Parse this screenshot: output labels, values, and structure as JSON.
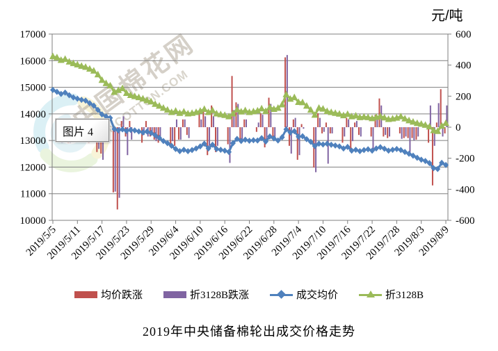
{
  "chart": {
    "unit_label": "元/吨",
    "title": "2019年中央储备棉轮出成交价格走势",
    "tooltip": "图片 4",
    "watermark": {
      "text": "中国棉花网",
      "subtext": "CNCOTTON.COM"
    },
    "legend": [
      {
        "label": "均价跌涨",
        "type": "bar",
        "color": "#c0504d"
      },
      {
        "label": "折3128B跌涨",
        "type": "bar",
        "color": "#8064a2"
      },
      {
        "label": "成交均价",
        "type": "line-diamond",
        "color": "#4f81bd"
      },
      {
        "label": "折3128B",
        "type": "line-triangle",
        "color": "#9bbb59"
      }
    ]
  },
  "chart_data": {
    "type": "combo bar + line (dual axis)",
    "title": "2019年中央储备棉轮出成交价格走势",
    "grid": "horizontal",
    "legend_position": "bottom",
    "y_left": {
      "min": 10000,
      "max": 17000,
      "step": 1000,
      "ticks": [
        17000,
        16000,
        15000,
        14000,
        13000,
        12000,
        11000,
        10000
      ]
    },
    "y_right": {
      "min": -600,
      "max": 600,
      "step": 200,
      "title": "元/吨",
      "ticks": [
        600,
        400,
        200,
        0,
        -200,
        -400,
        -600
      ]
    },
    "x_tick_labels": [
      "2019/5/5",
      "2019/5/11",
      "2019/5/17",
      "2019/5/23",
      "2019/5/29",
      "2019/6/4",
      "2019/6/10",
      "2019/6/16",
      "2019/6/22",
      "2019/6/28",
      "2019/7/4",
      "2019/7/10",
      "2019/7/16",
      "2019/7/22",
      "2019/7/28",
      "2019/8/3",
      "2019/8/9"
    ],
    "x": [
      "2019/5/5",
      "2019/5/6",
      "2019/5/7",
      "2019/5/8",
      "2019/5/9",
      "2019/5/10",
      "2019/5/11",
      "2019/5/12",
      "2019/5/13",
      "2019/5/14",
      "2019/5/15",
      "2019/5/16",
      "2019/5/17",
      "2019/5/18",
      "2019/5/19",
      "2019/5/20",
      "2019/5/21",
      "2019/5/22",
      "2019/5/23",
      "2019/5/24",
      "2019/5/25",
      "2019/5/26",
      "2019/5/27",
      "2019/5/28",
      "2019/5/29",
      "2019/5/30",
      "2019/5/31",
      "2019/6/1",
      "2019/6/2",
      "2019/6/3",
      "2019/6/4",
      "2019/6/5",
      "2019/6/6",
      "2019/6/7",
      "2019/6/8",
      "2019/6/9",
      "2019/6/10",
      "2019/6/11",
      "2019/6/12",
      "2019/6/13",
      "2019/6/14",
      "2019/6/15",
      "2019/6/16",
      "2019/6/17",
      "2019/6/18",
      "2019/6/19",
      "2019/6/20",
      "2019/6/21",
      "2019/6/22",
      "2019/6/23",
      "2019/6/24",
      "2019/6/25",
      "2019/6/26",
      "2019/6/27",
      "2019/6/28",
      "2019/6/29",
      "2019/6/30",
      "2019/7/1",
      "2019/7/2",
      "2019/7/3",
      "2019/7/4",
      "2019/7/5",
      "2019/7/6",
      "2019/7/7",
      "2019/7/8",
      "2019/7/9",
      "2019/7/10",
      "2019/7/11",
      "2019/7/12",
      "2019/7/13",
      "2019/7/14",
      "2019/7/15",
      "2019/7/16",
      "2019/7/17",
      "2019/7/18",
      "2019/7/19",
      "2019/7/20",
      "2019/7/21",
      "2019/7/22",
      "2019/7/23",
      "2019/7/24",
      "2019/7/25",
      "2019/7/26",
      "2019/7/27",
      "2019/7/28",
      "2019/7/29",
      "2019/7/30",
      "2019/7/31",
      "2019/8/1",
      "2019/8/2",
      "2019/8/3",
      "2019/8/4",
      "2019/8/5",
      "2019/8/6",
      "2019/8/7",
      "2019/8/8",
      "2019/8/9"
    ],
    "series": [
      {
        "name": "均价跌涨",
        "axis": "right",
        "type": "bar",
        "color": "#c0504d",
        "values": [
          null,
          -70,
          -95,
          50,
          -100,
          -80,
          null,
          null,
          -60,
          -100,
          -90,
          -160,
          -170,
          null,
          null,
          -420,
          -530,
          40,
          -60,
          40,
          null,
          null,
          -100,
          40,
          -60,
          -80,
          -100,
          null,
          null,
          -130,
          -120,
          -80,
          50,
          -50,
          null,
          null,
          100,
          100,
          -180,
          140,
          -160,
          null,
          null,
          -110,
          330,
          160,
          -80,
          50,
          null,
          null,
          -30,
          90,
          -130,
          190,
          -70,
          null,
          null,
          450,
          -120,
          50,
          -210,
          20,
          null,
          null,
          -260,
          90,
          -40,
          30,
          -40,
          null,
          null,
          -100,
          60,
          -140,
          30,
          -50,
          null,
          null,
          -60,
          80,
          185,
          -60,
          -70,
          null,
          null,
          -40,
          -70,
          -70,
          -70,
          -80,
          null,
          null,
          -100,
          -375,
          30,
          245,
          -40
        ]
      },
      {
        "name": "折3128B跌涨",
        "axis": "right",
        "type": "bar",
        "color": "#8064a2",
        "values": [
          null,
          -40,
          -100,
          40,
          -100,
          -60,
          null,
          null,
          -40,
          -70,
          -70,
          -140,
          -210,
          null,
          null,
          -415,
          -455,
          70,
          -180,
          -80,
          null,
          null,
          -50,
          -60,
          -50,
          -90,
          -70,
          null,
          null,
          -90,
          50,
          -80,
          50,
          -70,
          null,
          null,
          50,
          70,
          -120,
          70,
          -120,
          null,
          null,
          -230,
          110,
          150,
          -80,
          50,
          null,
          null,
          30,
          80,
          -100,
          150,
          -70,
          null,
          null,
          465,
          -170,
          60,
          -180,
          -10,
          null,
          null,
          -290,
          60,
          -30,
          -235,
          -40,
          null,
          null,
          -60,
          50,
          -90,
          40,
          -60,
          null,
          null,
          -140,
          60,
          140,
          -50,
          -60,
          null,
          null,
          -75,
          -60,
          -160,
          -85,
          -60,
          null,
          null,
          140,
          -120,
          155,
          -60,
          140
        ]
      },
      {
        "name": "成交均价",
        "axis": "left",
        "type": "line",
        "marker": "diamond",
        "color": "#4f81bd",
        "values": [
          14900,
          14830,
          14750,
          14800,
          14700,
          14620,
          14570,
          14530,
          14500,
          14400,
          14310,
          14150,
          13980,
          13900,
          13850,
          13430,
          13380,
          13420,
          13360,
          13400,
          13380,
          13340,
          13300,
          13340,
          13280,
          13200,
          13100,
          12980,
          12900,
          12800,
          12680,
          12600,
          12650,
          12600,
          12640,
          12700,
          12780,
          12880,
          12700,
          12840,
          12680,
          12650,
          12620,
          12570,
          12900,
          13060,
          12980,
          13030,
          12990,
          13010,
          13000,
          13090,
          12960,
          13150,
          13080,
          13000,
          13120,
          13420,
          13300,
          13350,
          13140,
          13160,
          13050,
          12950,
          12790,
          12880,
          12850,
          12880,
          12840,
          12810,
          12780,
          12700,
          12760,
          12620,
          12650,
          12600,
          12640,
          12670,
          12620,
          12700,
          12750,
          12690,
          12620,
          12650,
          12680,
          12640,
          12570,
          12500,
          12430,
          12350,
          12280,
          12230,
          12150,
          11960,
          11930,
          12160,
          12080
        ]
      },
      {
        "name": "折3128B",
        "axis": "left",
        "type": "line",
        "marker": "triangle",
        "color": "#9bbb59",
        "values": [
          16160,
          16120,
          16020,
          16060,
          15960,
          15900,
          15850,
          15800,
          15760,
          15690,
          15620,
          15480,
          15270,
          15150,
          15060,
          14820,
          14890,
          14960,
          14780,
          14700,
          14660,
          14620,
          14570,
          14510,
          14460,
          14370,
          14300,
          14220,
          14150,
          14060,
          14110,
          14030,
          14080,
          14010,
          14030,
          14060,
          14110,
          14180,
          14060,
          14130,
          14010,
          13980,
          13950,
          13900,
          14010,
          14160,
          14080,
          14130,
          14060,
          14090,
          14120,
          14200,
          14100,
          14250,
          14180,
          14220,
          14350,
          14730,
          14560,
          14620,
          14440,
          14430,
          14300,
          14150,
          13960,
          14220,
          14190,
          14100,
          14060,
          14030,
          14000,
          13940,
          13990,
          13900,
          13930,
          13870,
          13890,
          13870,
          13830,
          13880,
          13910,
          13860,
          13800,
          13820,
          13850,
          13900,
          13820,
          13750,
          13700,
          13650,
          13620,
          13580,
          13520,
          13380,
          13350,
          13550,
          13650
        ]
      }
    ]
  }
}
